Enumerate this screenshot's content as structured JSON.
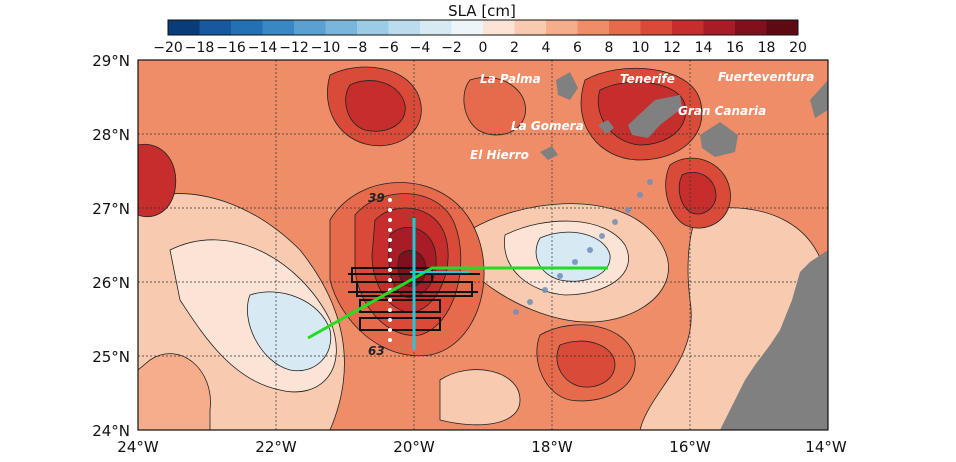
{
  "colorbar": {
    "title": "SLA [cm]",
    "ticks": [
      "−20",
      "−18",
      "−16",
      "−14",
      "−12",
      "−10",
      "−8",
      "−6",
      "−4",
      "−2",
      "0",
      "2",
      "4",
      "6",
      "8",
      "10",
      "12",
      "14",
      "16",
      "18",
      "20"
    ],
    "colors": [
      "#0b3c7a",
      "#17589e",
      "#2371b4",
      "#3a88c3",
      "#5aa0d0",
      "#7ab6dc",
      "#9ccbe6",
      "#bcdcee",
      "#d7e9f3",
      "#eef5f9",
      "#fbe3d6",
      "#f8cbb0",
      "#f5ad8b",
      "#ef8d68",
      "#e56b4c",
      "#d94a38",
      "#c62d2d",
      "#a71c26",
      "#82101c",
      "#5e0a15"
    ]
  },
  "map": {
    "lat_ticks": [
      "29°N",
      "28°N",
      "27°N",
      "26°N",
      "25°N",
      "24°N"
    ],
    "lon_ticks": [
      "24°W",
      "22°W",
      "20°W",
      "18°W",
      "16°W",
      "14°W"
    ],
    "islands": [
      "La Palma",
      "Tenerife",
      "Fuerteventura",
      "La Gomera",
      "Gran Canaria",
      "El Hierro"
    ],
    "section_labels": [
      "39",
      "63"
    ],
    "colors": {
      "land": "#808080",
      "green_track": "#22dd22",
      "cyan_track": "#22c8d8",
      "altimetry_track": "#6f8fb8"
    }
  }
}
